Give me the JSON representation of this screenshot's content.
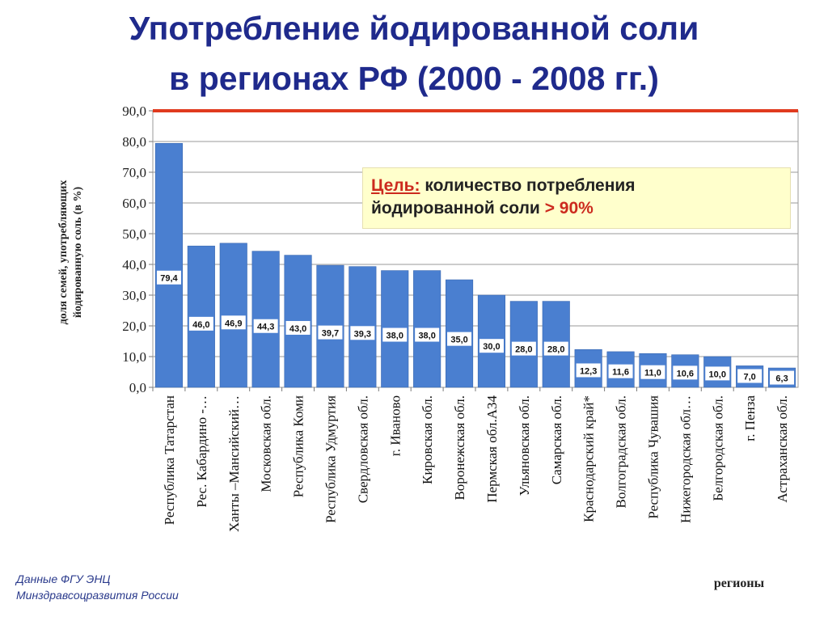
{
  "title": {
    "line1": "Употребление йодированной соли",
    "line2": "в регионах РФ (2000 - 2008 гг.)"
  },
  "goal": {
    "label": "Цель:",
    "text_line1": "количество потребления",
    "text_line2": "йодированной соли",
    "target": "> 90%"
  },
  "source": {
    "line1": "Данные ФГУ ЭНЦ",
    "line2": "Минздравсоцразвития России"
  },
  "colors": {
    "bar": "#4a7fd0",
    "target_line": "#e03a1e",
    "title": "#1f2a8c"
  },
  "chart_data": {
    "type": "bar",
    "title": "Употребление йодированной соли в регионах РФ (2000 - 2008 гг.)",
    "ylabel_line1": "доля семей, употребляющих",
    "ylabel_line2": "йодированную соль (в %)",
    "xlabel": "регионы",
    "ylim": [
      0,
      90
    ],
    "yticks": [
      "0,0",
      "10,0",
      "20,0",
      "30,0",
      "40,0",
      "50,0",
      "60,0",
      "70,0",
      "80,0",
      "90,0"
    ],
    "target_value": 90,
    "grid": true,
    "categories": [
      "Республика Татарстан",
      "Рес. Кабардино -…",
      "Ханты –Мансийский…",
      "Московская обл.",
      "Республика Коми",
      "Республика Удмуртия",
      "Свердловская обл.",
      "г. Иваново",
      "Кировская обл.",
      "Воронежская обл.",
      "Пермская обл.А34",
      "Ульяновская обл.",
      "Самарская обл.",
      "Краснодарский край*",
      "Волгоградская обл.",
      "Республика Чувашия",
      "Нижегородская обл…",
      "Белгородская обл.",
      "г. Пенза",
      "Астраханская обл."
    ],
    "values": [
      79.4,
      46.0,
      46.9,
      44.3,
      43.0,
      39.7,
      39.3,
      38.0,
      38.0,
      35.0,
      30.0,
      28.0,
      28.0,
      12.3,
      11.6,
      11.0,
      10.6,
      10.0,
      7.0,
      6.3
    ],
    "labels": [
      "79,4",
      "46,0",
      "46,9",
      "44,3",
      "43,0",
      "39,7",
      "39,3",
      "38,0",
      "38,0",
      "35,0",
      "30,0",
      "28,0",
      "28,0",
      "12,3",
      "11,6",
      "11,0",
      "10,6",
      "10,0",
      "7,0",
      "6,3"
    ]
  }
}
